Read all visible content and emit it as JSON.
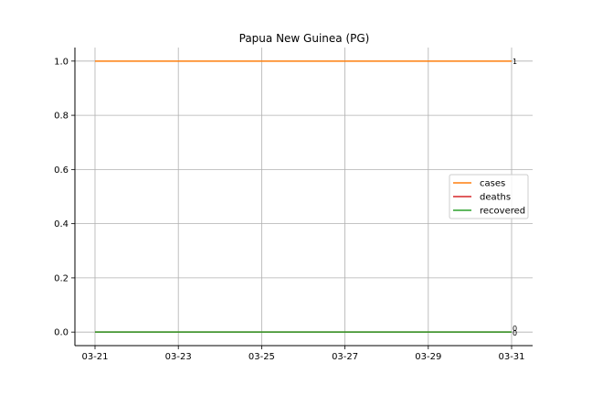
{
  "chart_data": {
    "type": "line",
    "title": "Papua New Guinea (PG)",
    "xlabel": "",
    "ylabel": "",
    "x": [
      "03-21",
      "03-22",
      "03-23",
      "03-24",
      "03-25",
      "03-26",
      "03-27",
      "03-28",
      "03-29",
      "03-30",
      "03-31"
    ],
    "x_ticks": [
      "03-21",
      "03-23",
      "03-25",
      "03-27",
      "03-29",
      "03-31"
    ],
    "y_ticks": [
      "0.0",
      "0.2",
      "0.4",
      "0.6",
      "0.8",
      "1.0"
    ],
    "ylim": [
      -0.05,
      1.05
    ],
    "grid": true,
    "legend_position": "center-right",
    "series": [
      {
        "name": "cases",
        "color": "#ff7f0e",
        "values": [
          1,
          1,
          1,
          1,
          1,
          1,
          1,
          1,
          1,
          1,
          1
        ],
        "end_label": "1"
      },
      {
        "name": "deaths",
        "color": "#d62728",
        "values": [
          0,
          0,
          0,
          0,
          0,
          0,
          0,
          0,
          0,
          0,
          0
        ],
        "end_label": "0"
      },
      {
        "name": "recovered",
        "color": "#2ca02c",
        "values": [
          0,
          0,
          0,
          0,
          0,
          0,
          0,
          0,
          0,
          0,
          0
        ],
        "end_label": "0"
      }
    ]
  }
}
